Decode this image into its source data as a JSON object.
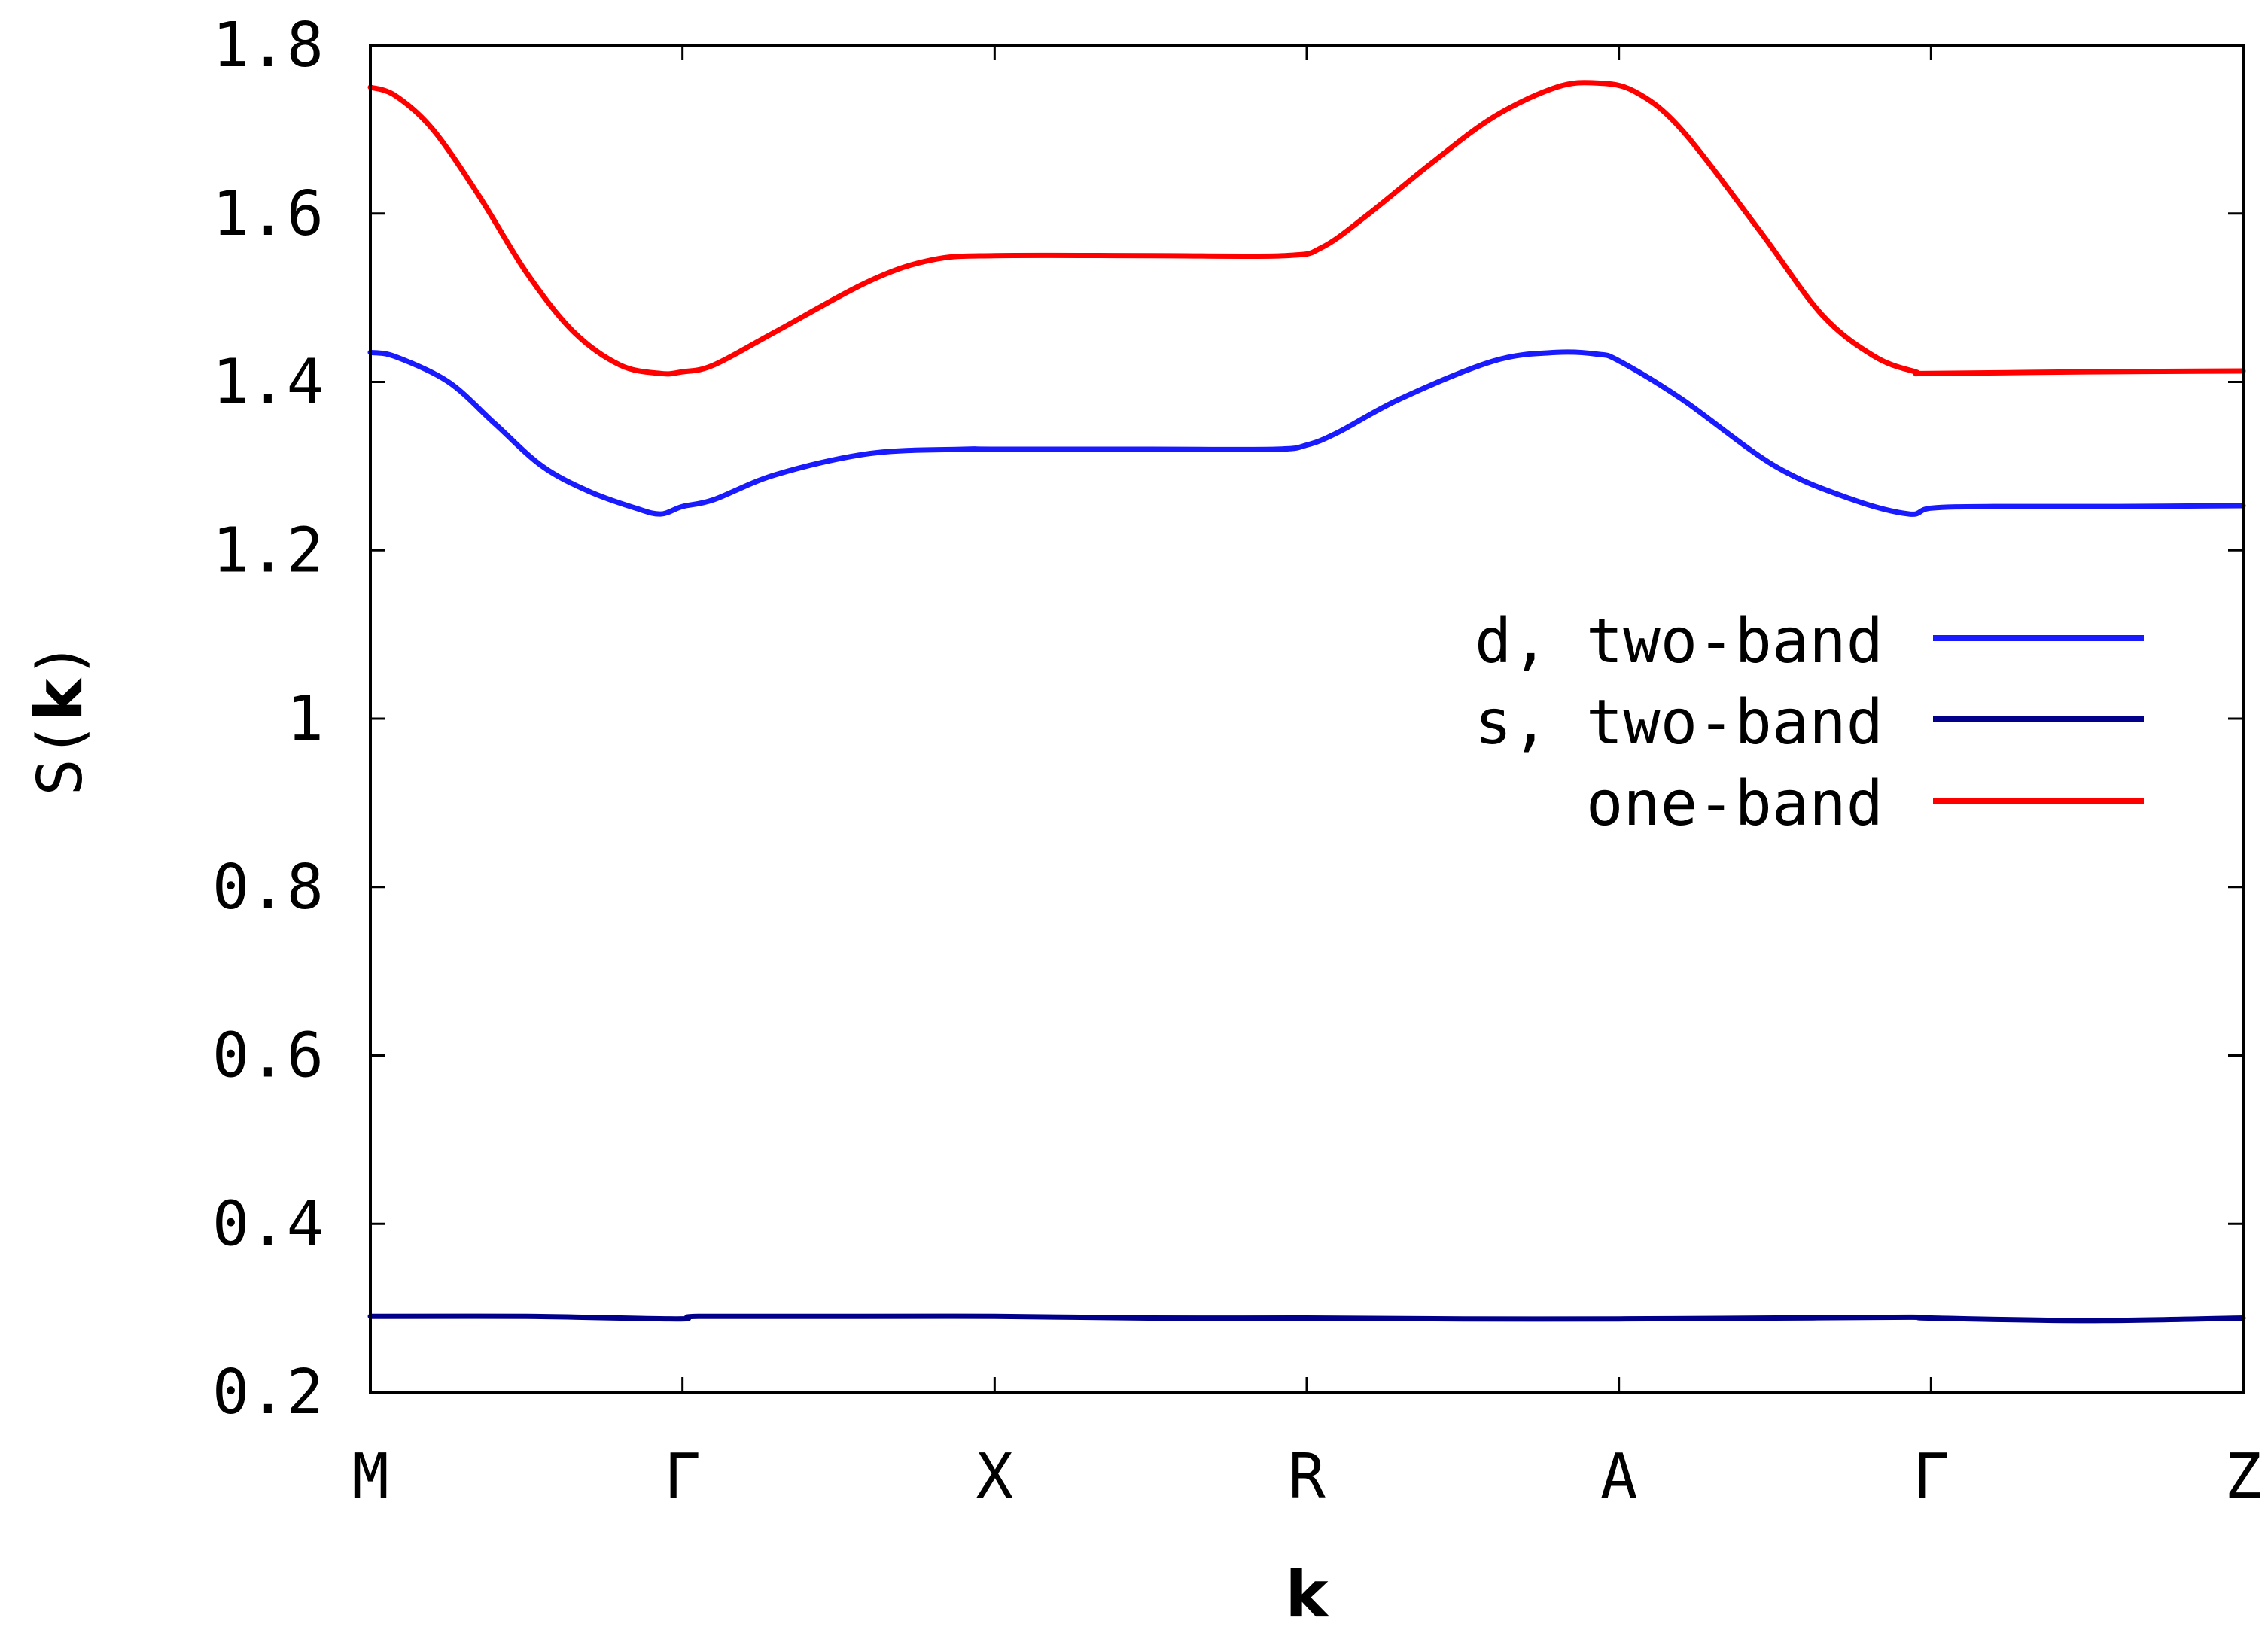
{
  "chart_data": {
    "type": "line",
    "xlabel": "k",
    "ylabel_prefix": "S",
    "ylabel_open": "(",
    "ylabel_bold": "k",
    "ylabel_close": ")",
    "ylim": [
      0.2,
      1.8
    ],
    "yticks": [
      {
        "value": 0.2,
        "label": "0.2"
      },
      {
        "value": 0.4,
        "label": "0.4"
      },
      {
        "value": 0.6,
        "label": "0.6"
      },
      {
        "value": 0.8,
        "label": "0.8"
      },
      {
        "value": 1.0,
        "label": "1"
      },
      {
        "value": 1.2,
        "label": "1.2"
      },
      {
        "value": 1.4,
        "label": "1.4"
      },
      {
        "value": 1.6,
        "label": "1.6"
      },
      {
        "value": 1.8,
        "label": "1.8"
      }
    ],
    "xlim": [
      0,
      6
    ],
    "xticks": [
      {
        "value": 0,
        "label": "M"
      },
      {
        "value": 1,
        "label": "Γ"
      },
      {
        "value": 2,
        "label": "X"
      },
      {
        "value": 3,
        "label": "R"
      },
      {
        "value": 4,
        "label": "A"
      },
      {
        "value": 5,
        "label": "Γ"
      },
      {
        "value": 6,
        "label": "Z"
      }
    ],
    "grid": false,
    "legend_position": "right, inside plot area",
    "series": [
      {
        "name": "d, two-band",
        "color": "#1a1aff",
        "x": [
          0,
          0.08,
          0.25,
          0.4,
          0.55,
          0.7,
          0.85,
          0.93,
          1.0,
          1.1,
          1.3,
          1.6,
          1.9,
          2.0,
          2.5,
          2.9,
          3.0,
          3.1,
          3.3,
          3.6,
          3.8,
          3.93,
          4.0,
          4.2,
          4.5,
          4.75,
          4.93,
          5.0,
          5.2,
          5.6,
          6.0
        ],
        "y": [
          1.435,
          1.43,
          1.4,
          1.35,
          1.3,
          1.27,
          1.25,
          1.243,
          1.252,
          1.26,
          1.29,
          1.315,
          1.32,
          1.32,
          1.32,
          1.32,
          1.325,
          1.34,
          1.38,
          1.425,
          1.435,
          1.433,
          1.425,
          1.38,
          1.3,
          1.26,
          1.243,
          1.25,
          1.252,
          1.252,
          1.253
        ]
      },
      {
        "name": "s, two-band",
        "color": "#00008b",
        "x": [
          0,
          0.5,
          0.98,
          1.05,
          1.5,
          2.0,
          2.5,
          3.0,
          3.5,
          4.0,
          4.5,
          4.93,
          5.0,
          5.5,
          6.0
        ],
        "y": [
          0.29,
          0.29,
          0.287,
          0.29,
          0.29,
          0.29,
          0.288,
          0.288,
          0.287,
          0.287,
          0.288,
          0.289,
          0.288,
          0.285,
          0.288
        ]
      },
      {
        "name": "one-band",
        "color": "#ff0000",
        "x": [
          0,
          0.08,
          0.2,
          0.35,
          0.5,
          0.65,
          0.8,
          0.93,
          1.0,
          1.1,
          1.3,
          1.6,
          1.8,
          2.0,
          2.5,
          2.93,
          3.05,
          3.2,
          3.4,
          3.6,
          3.8,
          3.93,
          4.05,
          4.2,
          4.45,
          4.65,
          4.82,
          4.95,
          5.0,
          5.5,
          6.0
        ],
        "y": [
          1.75,
          1.74,
          1.7,
          1.62,
          1.53,
          1.46,
          1.42,
          1.41,
          1.412,
          1.42,
          1.46,
          1.52,
          1.545,
          1.55,
          1.55,
          1.55,
          1.56,
          1.6,
          1.66,
          1.715,
          1.75,
          1.755,
          1.745,
          1.7,
          1.58,
          1.48,
          1.43,
          1.412,
          1.41,
          1.412,
          1.413
        ]
      }
    ]
  }
}
